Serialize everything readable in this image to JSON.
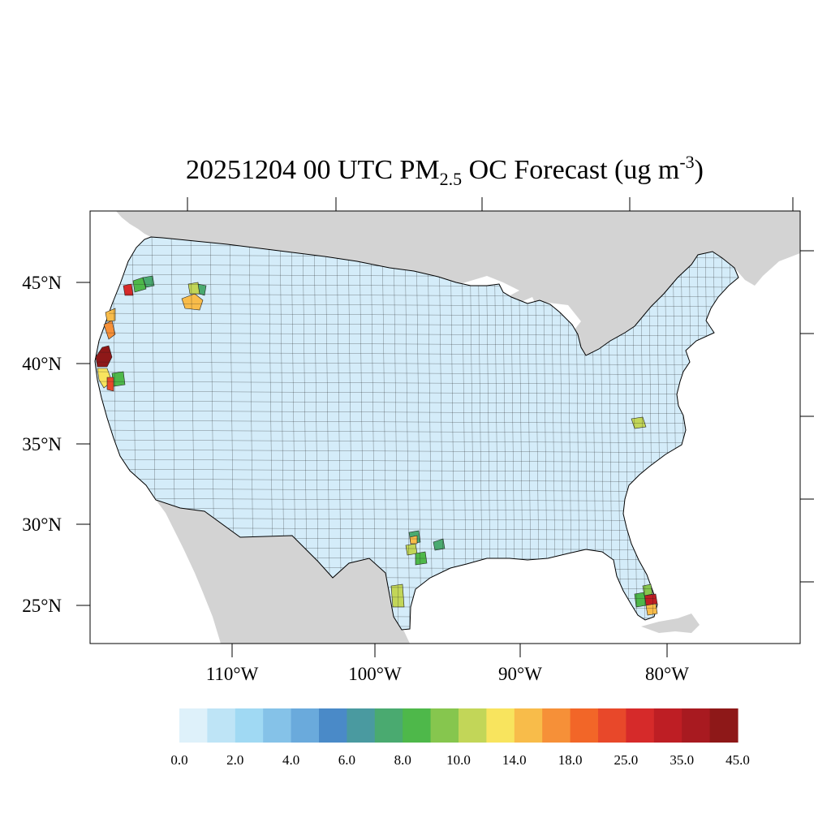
{
  "title": {
    "prefix": "20251204 00 UTC PM",
    "subscript": "2.5",
    "middle": " OC Forecast (ug m",
    "superscript": "-3",
    "suffix": ")"
  },
  "map": {
    "projection": "lambert-conformal",
    "region": "contiguous-us-counties",
    "colors": {
      "land_outside": "#d3d3d3",
      "water": "#ffffff",
      "county_border": "#000000"
    },
    "lat_labels": [
      "45°N",
      "40°N",
      "35°N",
      "30°N",
      "25°N"
    ],
    "lon_labels": [
      "110°W",
      "100°W",
      "90°W",
      "80°W"
    ],
    "hotspots": [
      {
        "area": "Northern California coast",
        "level": "45.0+"
      },
      {
        "area": "Oregon coast",
        "level": "18.0-25.0"
      },
      {
        "area": "Northwest Oregon",
        "level": "8.0-35.0"
      },
      {
        "area": "Central Idaho",
        "level": "10.0-18.0"
      },
      {
        "area": "South-central Texas",
        "level": "8.0-18.0"
      },
      {
        "area": "South Texas",
        "level": "10.0-14.0"
      },
      {
        "area": "Virginia",
        "level": "10.0-14.0"
      },
      {
        "area": "South Florida",
        "level": "14.0-45.0"
      }
    ]
  },
  "colorbar": {
    "colors": [
      "#def1fa",
      "#bee4f6",
      "#a0d9f3",
      "#85c2e8",
      "#6aaadc",
      "#4a8ac8",
      "#4a9aa0",
      "#4aaa70",
      "#4eb84a",
      "#86c64e",
      "#c2d658",
      "#f8e45e",
      "#f8bc4a",
      "#f69038",
      "#f26628",
      "#e8482a",
      "#d62a2a",
      "#be1e24",
      "#a81a20",
      "#8e1818"
    ],
    "tick_labels": [
      "0.0",
      "2.0",
      "4.0",
      "6.0",
      "8.0",
      "10.0",
      "14.0",
      "18.0",
      "25.0",
      "35.0",
      "45.0"
    ]
  }
}
